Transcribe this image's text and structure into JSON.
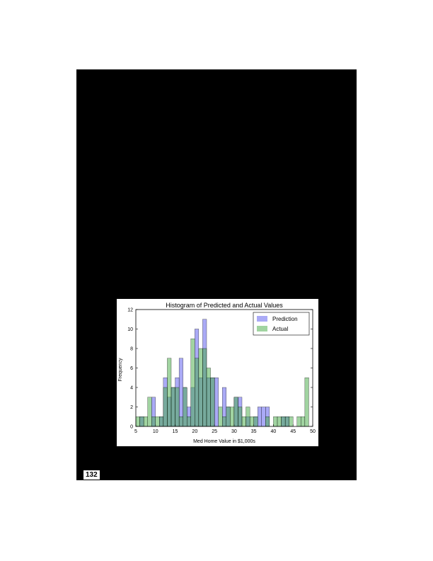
{
  "page": {
    "number": "132"
  },
  "chart_data": {
    "type": "bar",
    "title": "Histogram of Predicted and Actual Values",
    "xlabel": "Med Home Value in $1,000s",
    "ylabel": "Frequency",
    "xlim": [
      5,
      50
    ],
    "ylim": [
      0,
      12
    ],
    "xticks": [
      "5",
      "10",
      "15",
      "20",
      "25",
      "30",
      "35",
      "40",
      "45",
      "50"
    ],
    "yticks": [
      "0",
      "2",
      "4",
      "6",
      "8",
      "10",
      "12"
    ],
    "grid": false,
    "legend": "top-right",
    "bin_width": 1,
    "series": [
      {
        "name": "Prediction",
        "color": "#5555ee",
        "bins": [
          {
            "x": 6,
            "value": 1
          },
          {
            "x": 9,
            "value": 3
          },
          {
            "x": 11,
            "value": 1
          },
          {
            "x": 12,
            "value": 5
          },
          {
            "x": 13,
            "value": 3
          },
          {
            "x": 14,
            "value": 4
          },
          {
            "x": 15,
            "value": 5
          },
          {
            "x": 16,
            "value": 7
          },
          {
            "x": 17,
            "value": 4
          },
          {
            "x": 18,
            "value": 2
          },
          {
            "x": 19,
            "value": 4
          },
          {
            "x": 20,
            "value": 10
          },
          {
            "x": 21,
            "value": 5
          },
          {
            "x": 22,
            "value": 11
          },
          {
            "x": 23,
            "value": 5
          },
          {
            "x": 24,
            "value": 5
          },
          {
            "x": 25,
            "value": 5
          },
          {
            "x": 27,
            "value": 4
          },
          {
            "x": 28,
            "value": 2
          },
          {
            "x": 30,
            "value": 3
          },
          {
            "x": 31,
            "value": 3
          },
          {
            "x": 33,
            "value": 1
          },
          {
            "x": 35,
            "value": 1
          },
          {
            "x": 36,
            "value": 2
          },
          {
            "x": 37,
            "value": 2
          },
          {
            "x": 38,
            "value": 2
          },
          {
            "x": 42,
            "value": 1
          },
          {
            "x": 43,
            "value": 1
          }
        ]
      },
      {
        "name": "Actual",
        "color": "#44aa44",
        "bins": [
          {
            "x": 5,
            "value": 1
          },
          {
            "x": 6,
            "value": 1
          },
          {
            "x": 7,
            "value": 1
          },
          {
            "x": 8,
            "value": 3
          },
          {
            "x": 9,
            "value": 1
          },
          {
            "x": 10,
            "value": 1
          },
          {
            "x": 11,
            "value": 1
          },
          {
            "x": 12,
            "value": 4
          },
          {
            "x": 13,
            "value": 7
          },
          {
            "x": 14,
            "value": 4
          },
          {
            "x": 15,
            "value": 4
          },
          {
            "x": 16,
            "value": 1
          },
          {
            "x": 17,
            "value": 4
          },
          {
            "x": 18,
            "value": 1
          },
          {
            "x": 19,
            "value": 9
          },
          {
            "x": 20,
            "value": 7
          },
          {
            "x": 21,
            "value": 8
          },
          {
            "x": 22,
            "value": 8
          },
          {
            "x": 23,
            "value": 6
          },
          {
            "x": 24,
            "value": 5
          },
          {
            "x": 26,
            "value": 2
          },
          {
            "x": 27,
            "value": 1
          },
          {
            "x": 28,
            "value": 2
          },
          {
            "x": 29,
            "value": 2
          },
          {
            "x": 30,
            "value": 3
          },
          {
            "x": 31,
            "value": 2
          },
          {
            "x": 32,
            "value": 1
          },
          {
            "x": 33,
            "value": 2
          },
          {
            "x": 34,
            "value": 1
          },
          {
            "x": 35,
            "value": 1
          },
          {
            "x": 38,
            "value": 1
          },
          {
            "x": 40,
            "value": 1
          },
          {
            "x": 41,
            "value": 1
          },
          {
            "x": 42,
            "value": 1
          },
          {
            "x": 43,
            "value": 1
          },
          {
            "x": 44,
            "value": 1
          },
          {
            "x": 46,
            "value": 1
          },
          {
            "x": 47,
            "value": 1
          },
          {
            "x": 48,
            "value": 5
          }
        ]
      }
    ]
  }
}
